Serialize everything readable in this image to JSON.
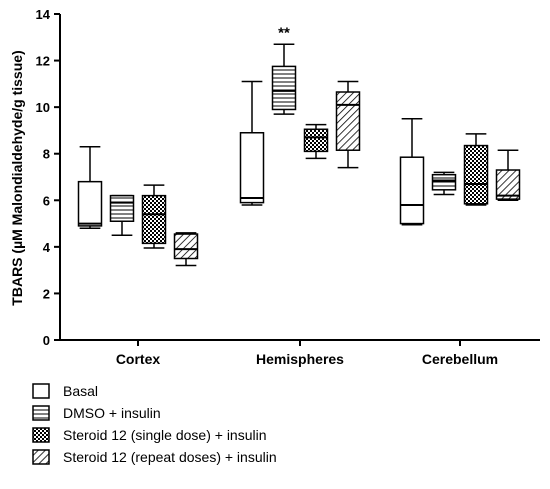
{
  "chart_data": {
    "type": "box",
    "title": "",
    "xlabel": "",
    "ylabel": "TBARS (µM Malondialdehyde/g tissue)",
    "ylim": [
      0,
      14
    ],
    "yticks": [
      0,
      2,
      4,
      6,
      8,
      10,
      12,
      14
    ],
    "grid": false,
    "legend_position": "bottom",
    "categories": [
      "Cortex",
      "Hemispheres",
      "Cerebellum"
    ],
    "series": [
      {
        "name": "Basal",
        "pattern": "none",
        "boxes": [
          {
            "min": 4.8,
            "q1": 4.9,
            "median": 5.0,
            "q3": 6.8,
            "max": 8.3
          },
          {
            "min": 5.8,
            "q1": 5.9,
            "median": 6.1,
            "q3": 8.9,
            "max": 11.1
          },
          {
            "min": 4.95,
            "q1": 5.0,
            "median": 5.8,
            "q3": 7.85,
            "max": 9.5
          }
        ]
      },
      {
        "name": "DMSO + insulin",
        "pattern": "horizontal",
        "boxes": [
          {
            "min": 4.5,
            "q1": 5.1,
            "median": 5.9,
            "q3": 6.2,
            "max": 6.2
          },
          {
            "min": 9.7,
            "q1": 9.9,
            "median": 10.7,
            "q3": 11.75,
            "max": 12.7
          },
          {
            "min": 6.25,
            "q1": 6.45,
            "median": 6.85,
            "q3": 7.1,
            "max": 7.2
          }
        ]
      },
      {
        "name": "Steroid 12 (single dose) + insulin",
        "pattern": "checker",
        "boxes": [
          {
            "min": 3.95,
            "q1": 4.15,
            "median": 5.4,
            "q3": 6.2,
            "max": 6.65
          },
          {
            "min": 7.8,
            "q1": 8.1,
            "median": 8.7,
            "q3": 9.05,
            "max": 9.25
          },
          {
            "min": 5.8,
            "q1": 5.85,
            "median": 6.7,
            "q3": 8.35,
            "max": 8.85
          }
        ]
      },
      {
        "name": "Steroid 12 (repeat doses) + insulin",
        "pattern": "diagonal",
        "boxes": [
          {
            "min": 3.2,
            "q1": 3.5,
            "median": 3.9,
            "q3": 4.55,
            "max": 4.6
          },
          {
            "min": 7.4,
            "q1": 8.15,
            "median": 10.1,
            "q3": 10.65,
            "max": 11.1
          },
          {
            "min": 6.0,
            "q1": 6.05,
            "median": 6.2,
            "q3": 7.3,
            "max": 8.15
          }
        ]
      }
    ],
    "annotations": [
      {
        "text": "**",
        "category": "Hemispheres",
        "series": "DMSO + insulin"
      }
    ]
  }
}
